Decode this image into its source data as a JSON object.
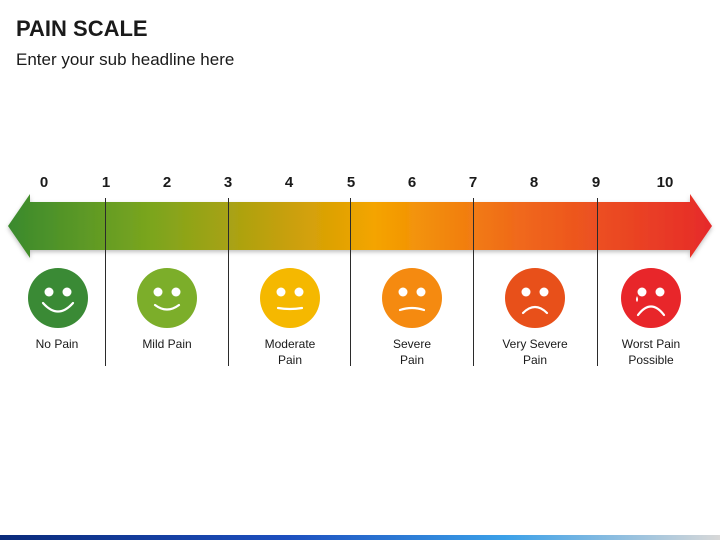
{
  "header": {
    "title": "PAIN SCALE",
    "subtitle": "Enter your sub headline here"
  },
  "scale": {
    "ticks": [
      "0",
      "1",
      "2",
      "3",
      "4",
      "5",
      "6",
      "7",
      "8",
      "9",
      "10"
    ],
    "gradient_colors": [
      "#3a8a2e",
      "#7aa51e",
      "#c9a00a",
      "#f4a400",
      "#f06a1a",
      "#e62a2a"
    ]
  },
  "faces": [
    {
      "label_line1": "No Pain",
      "label_line2": "",
      "color": "#3a8a35",
      "mouth": "big-smile"
    },
    {
      "label_line1": "Mild Pain",
      "label_line2": "",
      "color": "#7cae2a",
      "mouth": "smile"
    },
    {
      "label_line1": "Moderate",
      "label_line2": "Pain",
      "color": "#f5b800",
      "mouth": "flat"
    },
    {
      "label_line1": "Severe",
      "label_line2": "Pain",
      "color": "#f58a10",
      "mouth": "slight-frown"
    },
    {
      "label_line1": "Very Severe",
      "label_line2": "Pain",
      "color": "#e8501a",
      "mouth": "frown"
    },
    {
      "label_line1": "Worst Pain",
      "label_line2": "Possible",
      "color": "#e8262a",
      "mouth": "big-frown-tear"
    }
  ]
}
